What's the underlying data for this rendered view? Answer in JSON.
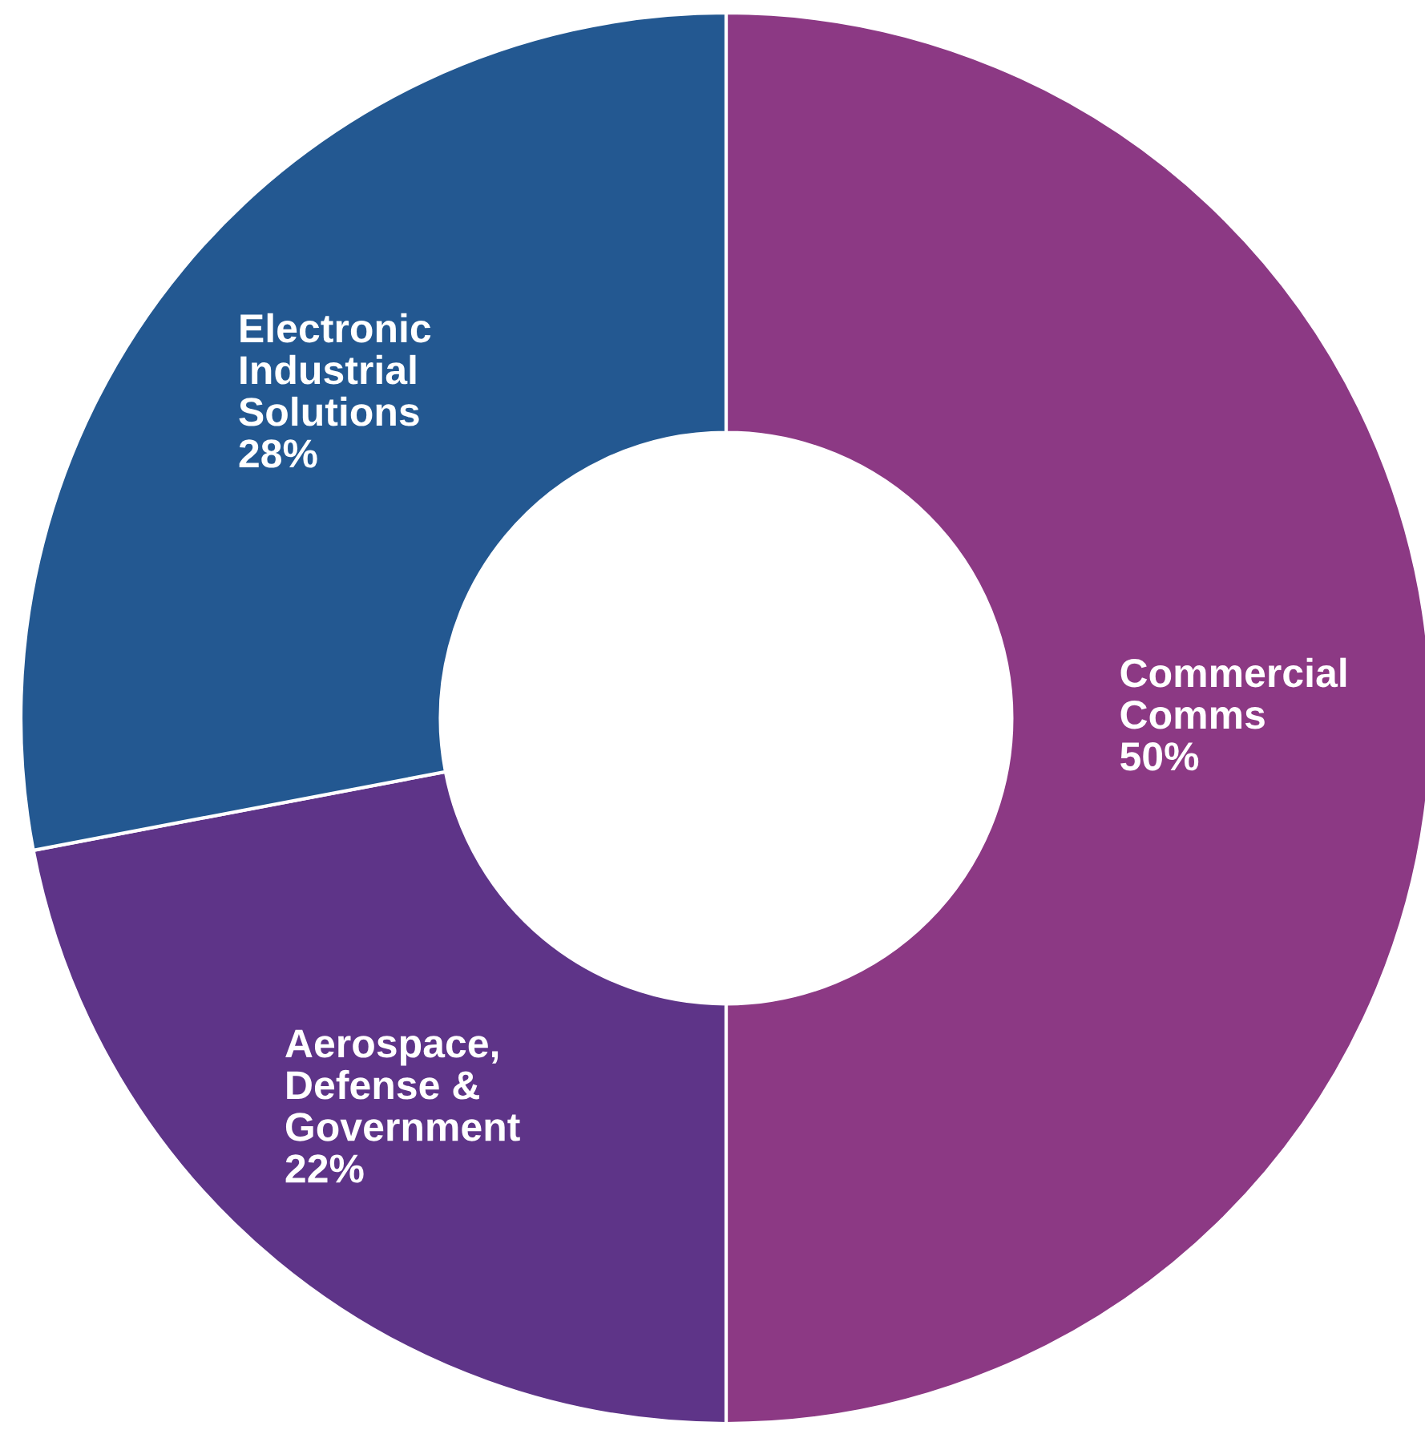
{
  "chart_data": {
    "type": "donut",
    "categories": [
      "Commercial\nComms",
      "Aerospace,\nDefense &\nGovernment",
      "Electronic\nIndustrial\nSolutions"
    ],
    "values": [
      50,
      22,
      28
    ],
    "value_labels": [
      "50%",
      "22%",
      "28%"
    ],
    "colors": [
      "#8c3984",
      "#5e3488",
      "#235891"
    ],
    "legend": false
  }
}
